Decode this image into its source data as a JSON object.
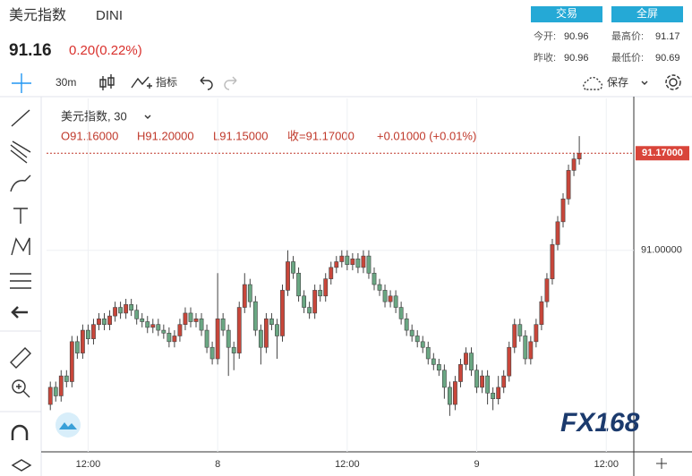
{
  "header": {
    "title": "美元指数",
    "symbol": "DINI",
    "price": "91.16",
    "change": "0.20(0.22%)",
    "buttons": [
      "交易",
      "全屏"
    ],
    "stats": [
      {
        "label": "今开:",
        "value": "90.96"
      },
      {
        "label": "最高价:",
        "value": "91.17"
      },
      {
        "label": "昨收:",
        "value": "90.96"
      },
      {
        "label": "最低价:",
        "value": "90.69"
      }
    ]
  },
  "toolbar": {
    "interval": "30m",
    "indicators": "指标",
    "save": "保存"
  },
  "legend": {
    "name": "美元指数, 30",
    "open": "O91.16000",
    "high": "H91.20000",
    "low": "L91.15000",
    "close": "收=91.17000",
    "change": "+0.01000 (+0.01%)"
  },
  "logo": "FX168",
  "chart_data": {
    "type": "candlestick",
    "up_color": "#c8463a",
    "down_color": "#6aa783",
    "x": [
      0,
      1,
      2,
      3,
      4,
      5,
      6,
      7,
      8,
      9,
      10,
      11,
      12,
      13,
      14,
      15,
      16,
      17,
      18,
      19,
      20,
      21,
      22,
      23,
      24,
      25,
      26,
      27,
      28,
      29,
      30,
      31,
      32,
      33,
      34,
      35,
      36,
      37,
      38,
      39,
      40,
      41,
      42,
      43,
      44,
      45,
      46,
      47,
      48,
      49,
      50,
      51,
      52,
      53,
      54,
      55,
      56,
      57,
      58,
      59,
      60,
      61,
      62,
      63,
      64,
      65,
      66,
      67,
      68,
      69,
      70,
      71,
      72,
      73,
      74,
      75,
      76,
      77,
      78,
      79,
      80,
      81,
      82,
      83,
      84,
      85,
      86,
      87,
      88,
      89,
      90,
      91,
      92,
      93,
      94,
      95,
      96,
      97,
      98
    ],
    "open": [
      90.73,
      90.76,
      90.745,
      90.78,
      90.77,
      90.84,
      90.82,
      90.86,
      90.845,
      90.87,
      90.88,
      90.87,
      90.885,
      90.9,
      90.89,
      90.905,
      90.895,
      90.88,
      90.875,
      90.865,
      90.87,
      90.86,
      90.855,
      90.84,
      90.85,
      90.87,
      90.89,
      90.875,
      90.88,
      90.86,
      90.83,
      90.81,
      90.88,
      90.86,
      90.83,
      90.82,
      90.9,
      90.94,
      90.91,
      90.86,
      90.83,
      90.88,
      90.87,
      90.85,
      90.93,
      90.98,
      90.96,
      90.92,
      90.9,
      90.89,
      90.93,
      90.92,
      90.95,
      90.97,
      90.98,
      90.99,
      90.975,
      90.985,
      90.97,
      90.99,
      90.96,
      90.94,
      90.93,
      90.91,
      90.92,
      90.9,
      90.88,
      90.86,
      90.85,
      90.84,
      90.83,
      90.81,
      90.8,
      90.79,
      90.76,
      90.73,
      90.77,
      90.8,
      90.82,
      90.79,
      90.76,
      90.78,
      90.75,
      90.74,
      90.76,
      90.78,
      90.83,
      90.87,
      90.85,
      90.81,
      90.84,
      90.87,
      90.91,
      90.95,
      91.01,
      91.05,
      91.09,
      91.14,
      91.16
    ],
    "high": [
      90.77,
      90.77,
      90.79,
      90.79,
      90.85,
      90.85,
      90.87,
      90.87,
      90.88,
      90.89,
      90.89,
      90.895,
      90.91,
      90.91,
      90.915,
      90.915,
      90.905,
      90.89,
      90.885,
      90.88,
      90.88,
      90.87,
      90.865,
      90.86,
      90.88,
      90.9,
      90.9,
      90.89,
      90.89,
      90.87,
      90.84,
      90.96,
      90.89,
      90.87,
      90.84,
      90.91,
      90.96,
      90.95,
      90.92,
      90.87,
      90.89,
      90.89,
      90.88,
      90.94,
      91.0,
      90.99,
      90.97,
      90.93,
      90.91,
      90.94,
      90.94,
      90.96,
      90.98,
      90.99,
      91.0,
      91.0,
      90.995,
      90.995,
      91.0,
      91.0,
      90.97,
      90.95,
      90.94,
      90.93,
      90.93,
      90.91,
      90.89,
      90.87,
      90.86,
      90.85,
      90.84,
      90.82,
      90.81,
      90.8,
      90.77,
      90.78,
      90.81,
      90.83,
      90.83,
      90.8,
      90.79,
      90.79,
      90.76,
      90.78,
      90.79,
      90.84,
      90.88,
      90.88,
      90.86,
      90.85,
      90.88,
      90.92,
      90.96,
      91.02,
      91.06,
      91.1,
      91.15,
      91.17,
      91.2
    ],
    "low": [
      90.72,
      90.735,
      90.735,
      90.76,
      90.76,
      90.81,
      90.81,
      90.835,
      90.835,
      90.86,
      90.86,
      90.86,
      90.875,
      90.88,
      90.88,
      90.885,
      90.87,
      90.865,
      90.855,
      90.855,
      90.85,
      90.845,
      90.83,
      90.83,
      90.84,
      90.86,
      90.865,
      90.865,
      90.85,
      90.82,
      90.8,
      90.8,
      90.85,
      90.78,
      90.79,
      90.81,
      90.89,
      90.9,
      90.85,
      90.8,
      90.82,
      90.86,
      90.81,
      90.84,
      90.92,
      90.95,
      90.91,
      90.89,
      90.88,
      90.88,
      90.91,
      90.91,
      90.94,
      90.96,
      90.97,
      90.965,
      90.965,
      90.96,
      90.96,
      90.95,
      90.93,
      90.92,
      90.9,
      90.9,
      90.89,
      90.87,
      90.85,
      90.84,
      90.83,
      90.82,
      90.8,
      90.79,
      90.78,
      90.74,
      90.71,
      90.72,
      90.76,
      90.79,
      90.78,
      90.75,
      90.75,
      90.73,
      90.72,
      90.73,
      90.75,
      90.77,
      90.82,
      90.84,
      90.8,
      90.8,
      90.83,
      90.86,
      90.9,
      90.94,
      91.0,
      91.04,
      91.08,
      91.13,
      91.15
    ],
    "close": [
      90.76,
      90.745,
      90.78,
      90.77,
      90.84,
      90.82,
      90.86,
      90.845,
      90.87,
      90.88,
      90.87,
      90.885,
      90.9,
      90.89,
      90.905,
      90.895,
      90.88,
      90.875,
      90.865,
      90.87,
      90.86,
      90.855,
      90.84,
      90.85,
      90.87,
      90.89,
      90.875,
      90.88,
      90.86,
      90.83,
      90.81,
      90.88,
      90.86,
      90.83,
      90.82,
      90.9,
      90.94,
      90.91,
      90.86,
      90.83,
      90.88,
      90.87,
      90.85,
      90.93,
      90.98,
      90.96,
      90.92,
      90.9,
      90.89,
      90.93,
      90.92,
      90.95,
      90.97,
      90.98,
      90.99,
      90.975,
      90.985,
      90.97,
      90.99,
      90.96,
      90.94,
      90.93,
      90.91,
      90.92,
      90.9,
      90.88,
      90.86,
      90.85,
      90.84,
      90.83,
      90.81,
      90.8,
      90.79,
      90.76,
      90.73,
      90.77,
      90.8,
      90.82,
      90.79,
      90.76,
      90.78,
      90.75,
      90.74,
      90.76,
      90.78,
      90.83,
      90.87,
      90.85,
      90.81,
      90.84,
      90.87,
      90.91,
      90.95,
      91.01,
      91.05,
      91.09,
      91.14,
      91.16,
      91.17
    ],
    "xlim": [
      -0.7,
      108.1
    ],
    "xticks": [
      {
        "value": 7,
        "label": "12:00"
      },
      {
        "value": 31,
        "label": "8"
      },
      {
        "value": 55,
        "label": "12:00"
      },
      {
        "value": 79,
        "label": "9"
      },
      {
        "value": 103,
        "label": "12:00"
      }
    ],
    "ylim": [
      90.647,
      91.266
    ],
    "yticks": [
      {
        "value": 91,
        "label": "91.00000"
      }
    ],
    "last_price": {
      "value": 91.17,
      "label": "91.17000"
    },
    "grid": true
  }
}
